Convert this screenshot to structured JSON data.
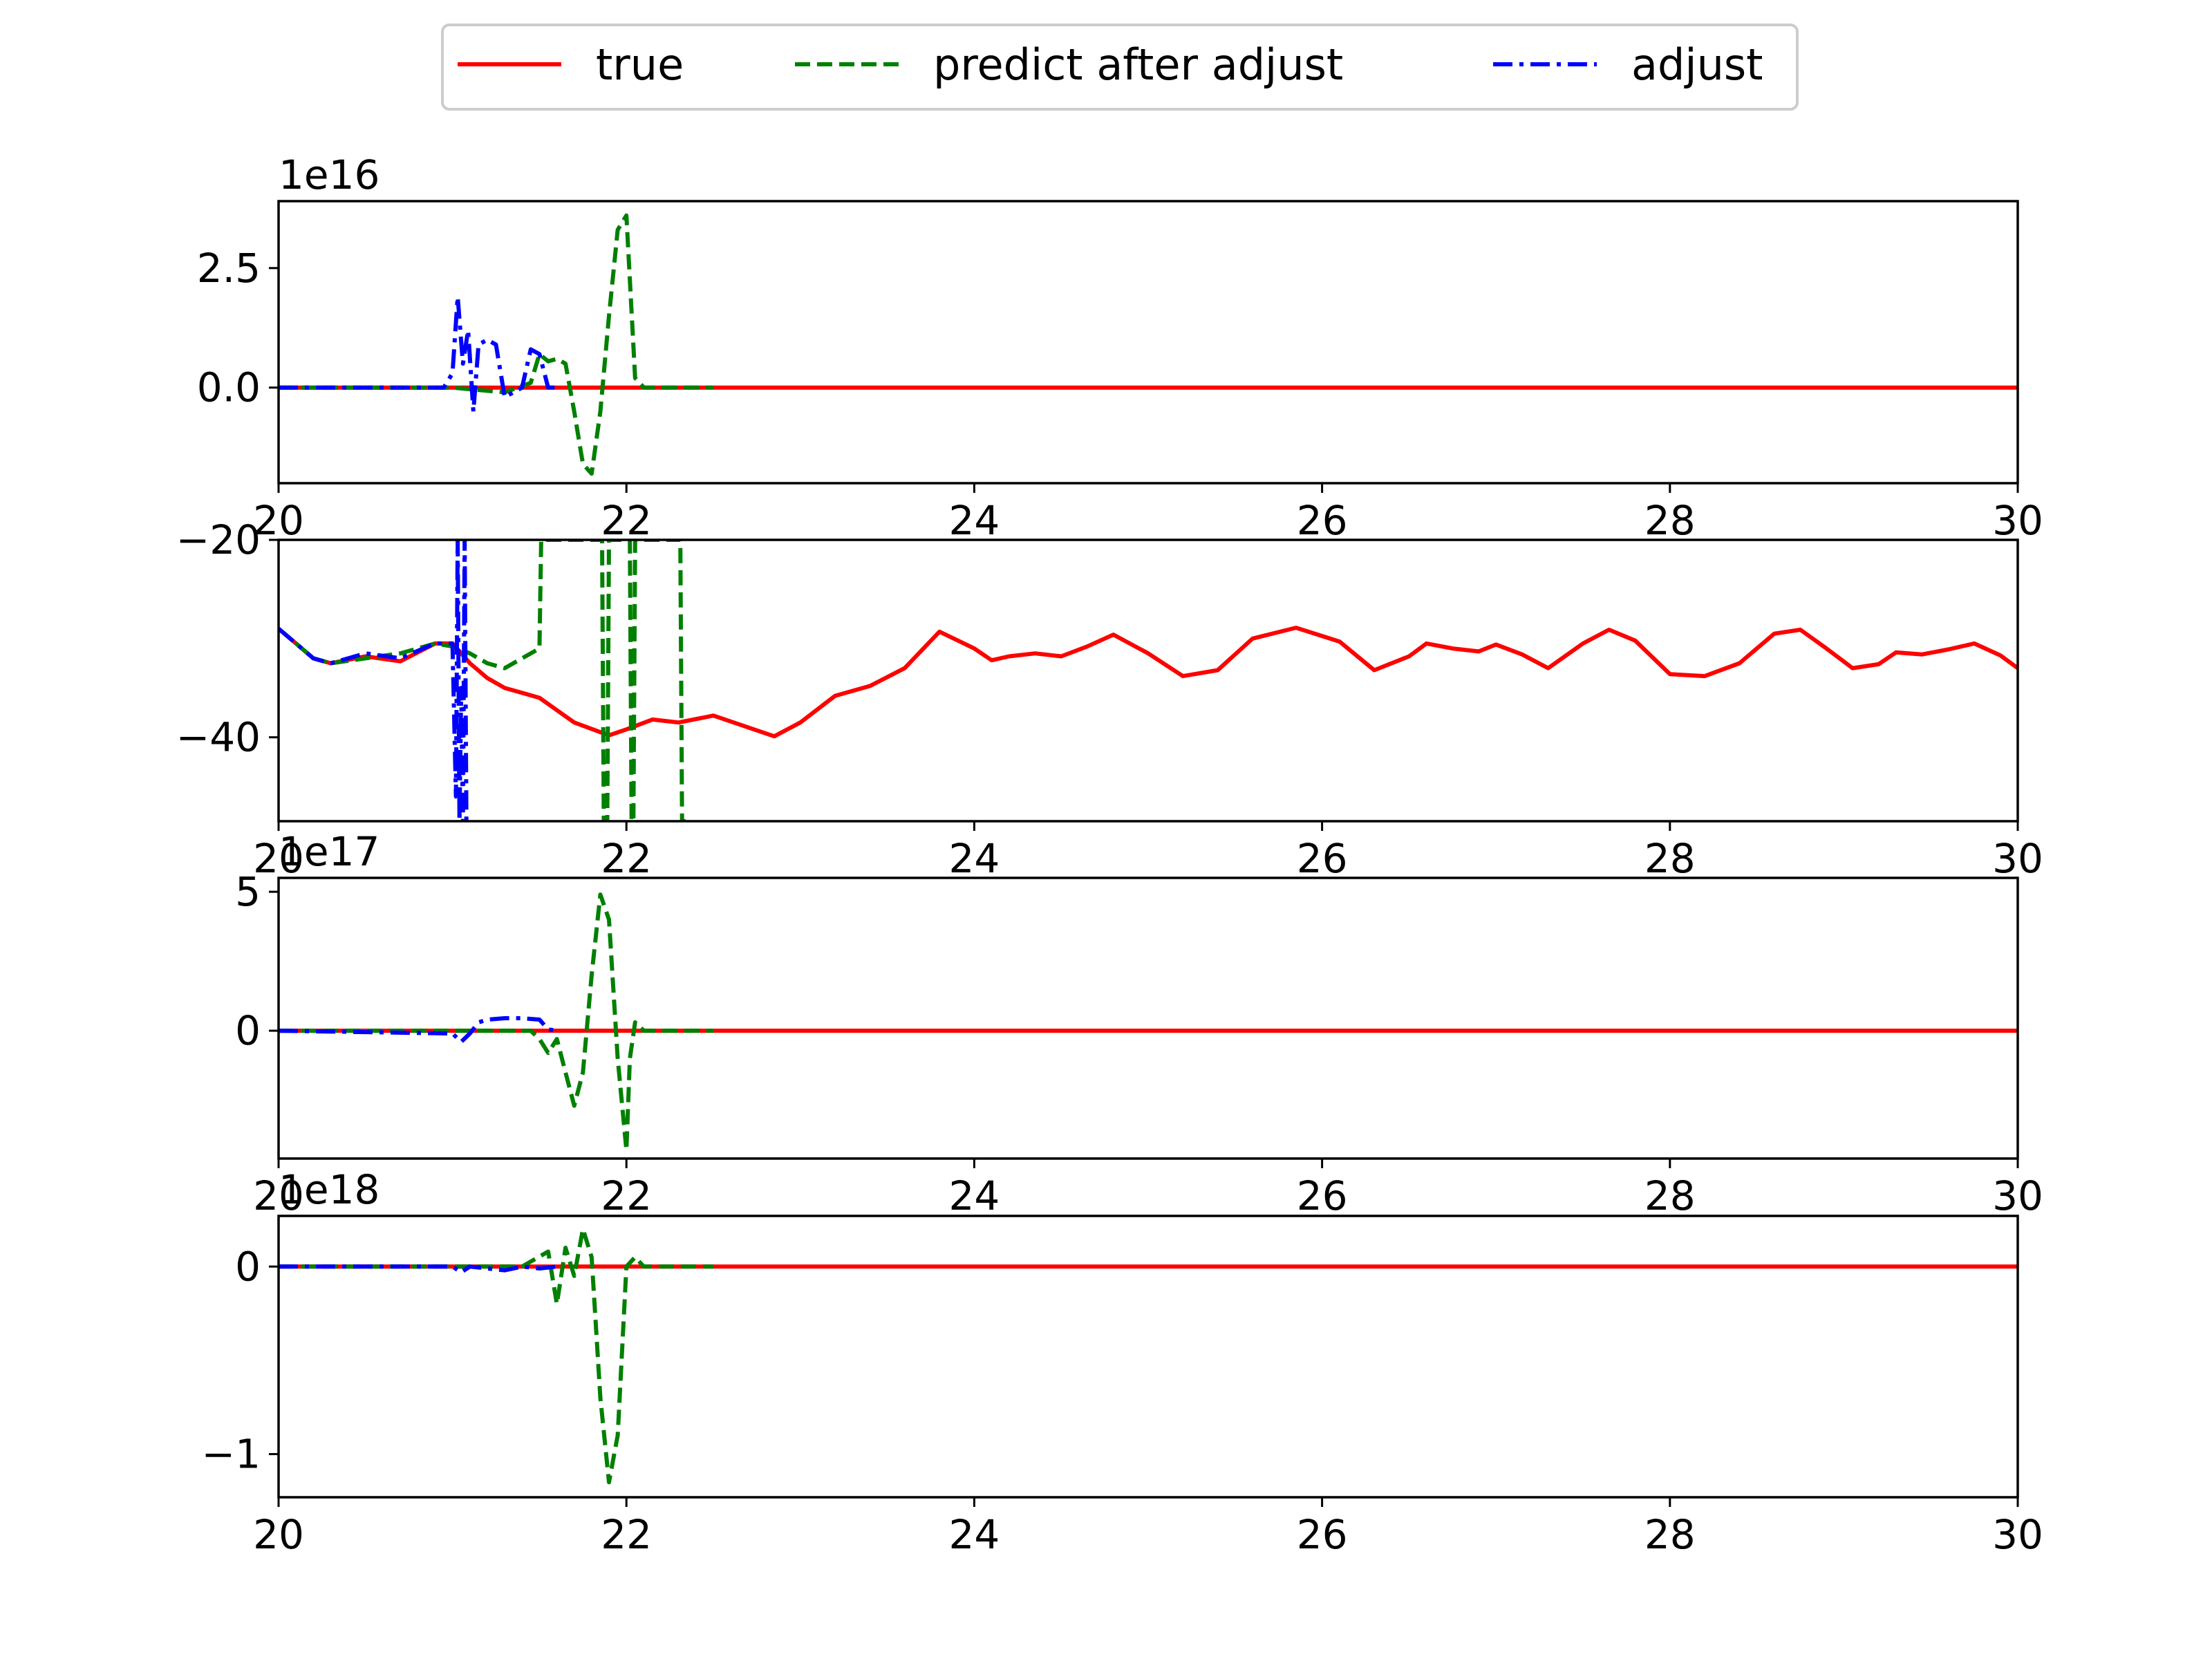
{
  "legend": {
    "placement": "top-center",
    "entries": [
      {
        "label": "true",
        "color": "#ff0000",
        "style": "solid"
      },
      {
        "label": "predict after adjust",
        "color": "#008000",
        "style": "dashed"
      },
      {
        "label": "adjust",
        "color": "#0000ff",
        "style": "dashdot"
      }
    ]
  },
  "chart_data": [
    {
      "type": "line",
      "offset_text": "1e16",
      "xlim": [
        20,
        30
      ],
      "ylim": [
        -2.0,
        3.9
      ],
      "xticks": [
        {
          "v": 20,
          "label": "20"
        },
        {
          "v": 22,
          "label": "22"
        },
        {
          "v": 24,
          "label": "24"
        },
        {
          "v": 26,
          "label": "26"
        },
        {
          "v": 28,
          "label": "28"
        },
        {
          "v": 30,
          "label": "30"
        }
      ],
      "yticks": [
        {
          "v": 0,
          "label": "0.0"
        },
        {
          "v": 2.5,
          "label": "2.5"
        }
      ],
      "series": [
        {
          "name": "true",
          "color": "#ff0000",
          "dash": "solid",
          "x": [
            20,
            22.5,
            30
          ],
          "y": [
            0,
            0,
            0
          ]
        },
        {
          "name": "predict after adjust",
          "color": "#008000",
          "dash": "dashed",
          "x": [
            20,
            21.0,
            21.3,
            21.45,
            21.5,
            21.55,
            21.6,
            21.65,
            21.7,
            21.75,
            21.8,
            21.85,
            21.9,
            21.95,
            22.0,
            22.05,
            22.1,
            22.5
          ],
          "y": [
            0,
            0,
            -0.1,
            0.1,
            0.7,
            0.55,
            0.6,
            0.5,
            -0.5,
            -1.6,
            -1.8,
            -0.5,
            1.5,
            3.3,
            3.6,
            0.2,
            0,
            0
          ]
        },
        {
          "name": "adjust",
          "color": "#0000ff",
          "dash": "dashdot",
          "x": [
            20,
            20.95,
            21.0,
            21.03,
            21.06,
            21.09,
            21.12,
            21.15,
            21.2,
            21.25,
            21.3,
            21.35,
            21.4,
            21.45,
            21.5,
            21.55,
            21.6
          ],
          "y": [
            0,
            0,
            0.3,
            1.9,
            0.5,
            1.2,
            -0.5,
            0.9,
            1.0,
            0.9,
            -0.2,
            -0.1,
            0.0,
            0.8,
            0.7,
            0.0,
            0.0
          ]
        }
      ]
    },
    {
      "type": "line",
      "offset_text": "",
      "xlim": [
        20,
        30
      ],
      "ylim": [
        -48.5,
        -20
      ],
      "xticks": [
        {
          "v": 20,
          "label": "20"
        },
        {
          "v": 22,
          "label": "22"
        },
        {
          "v": 24,
          "label": "24"
        },
        {
          "v": 26,
          "label": "26"
        },
        {
          "v": 28,
          "label": "28"
        },
        {
          "v": 30,
          "label": "30"
        }
      ],
      "yticks": [
        {
          "v": -20,
          "label": "−20"
        },
        {
          "v": -40,
          "label": "−40"
        }
      ],
      "series": [
        {
          "name": "true",
          "color": "#ff0000",
          "dash": "solid",
          "x": [
            20,
            20.1,
            20.2,
            20.3,
            20.5,
            20.7,
            20.9,
            21.0,
            21.1,
            21.2,
            21.3,
            21.5,
            21.7,
            21.9,
            22.0,
            22.15,
            22.3,
            22.5,
            22.7,
            22.85,
            23.0,
            23.2,
            23.4,
            23.6,
            23.8,
            24.0,
            24.1,
            24.2,
            24.35,
            24.5,
            24.65,
            24.8,
            25.0,
            25.2,
            25.4,
            25.6,
            25.85,
            26.1,
            26.3,
            26.5,
            26.6,
            26.75,
            26.9,
            27.0,
            27.15,
            27.3,
            27.5,
            27.65,
            27.8,
            28.0,
            28.2,
            28.4,
            28.6,
            28.75,
            28.9,
            29.05,
            29.2,
            29.3,
            29.45,
            29.6,
            29.75,
            29.9,
            30.0
          ],
          "y": [
            -29,
            -30.5,
            -32,
            -32.5,
            -31.8,
            -32.3,
            -30.5,
            -30.5,
            -32.5,
            -34,
            -35,
            -36,
            -38.5,
            -39.8,
            -39.2,
            -38.2,
            -38.5,
            -37.8,
            -39,
            -39.9,
            -38.5,
            -35.8,
            -34.8,
            -33,
            -29.3,
            -31,
            -32.2,
            -31.8,
            -31.5,
            -31.8,
            -30.8,
            -29.6,
            -31.5,
            -33.8,
            -33.2,
            -30,
            -28.9,
            -30.3,
            -33.2,
            -31.8,
            -30.5,
            -31,
            -31.3,
            -30.6,
            -31.6,
            -33,
            -30.5,
            -29.1,
            -30.2,
            -33.6,
            -33.8,
            -32.5,
            -29.5,
            -29.1,
            -31,
            -33,
            -32.6,
            -31.4,
            -31.6,
            -31.1,
            -30.5,
            -31.7,
            -33
          ]
        },
        {
          "name": "predict after adjust",
          "color": "#008000",
          "dash": "dashed",
          "x": [
            20,
            20.1,
            20.2,
            20.3,
            20.5,
            20.7,
            20.9,
            21.0,
            21.1,
            21.2,
            21.3,
            21.4,
            21.5,
            21.51,
            21.52,
            21.86,
            21.87,
            21.89,
            21.9,
            21.92,
            22.02,
            22.03,
            22.04,
            22.05,
            22.31,
            22.32,
            22.33,
            22.34
          ],
          "y": [
            -29,
            -30.5,
            -32,
            -32.5,
            -32,
            -31.5,
            -30.5,
            -30.8,
            -31.5,
            -32.5,
            -33,
            -32,
            -31,
            -20,
            -20,
            -20,
            -48.5,
            -48.5,
            -20,
            -20,
            -20,
            -48.5,
            -48.5,
            -20,
            -20,
            -48.5,
            -48.5,
            -48.5
          ]
        },
        {
          "name": "adjust",
          "color": "#0000ff",
          "dash": "dashdot",
          "x": [
            20,
            20.1,
            20.2,
            20.3,
            20.5,
            20.7,
            20.9,
            21.0,
            21.02,
            21.03,
            21.04,
            21.05,
            21.06,
            21.07,
            21.08,
            21.09,
            21.1
          ],
          "y": [
            -29,
            -30.5,
            -32,
            -32.5,
            -31.5,
            -32,
            -30.5,
            -30.5,
            -46,
            -20,
            -48.5,
            -35,
            -48.5,
            -20,
            -48.5,
            -48.5,
            -48.5
          ]
        }
      ]
    },
    {
      "type": "line",
      "offset_text": "1e17",
      "xlim": [
        20,
        30
      ],
      "ylim": [
        -4.6,
        5.5
      ],
      "xticks": [
        {
          "v": 20,
          "label": "20"
        },
        {
          "v": 22,
          "label": "22"
        },
        {
          "v": 24,
          "label": "24"
        },
        {
          "v": 26,
          "label": "26"
        },
        {
          "v": 28,
          "label": "28"
        },
        {
          "v": 30,
          "label": "30"
        }
      ],
      "yticks": [
        {
          "v": 0,
          "label": "0"
        },
        {
          "v": 5,
          "label": "5"
        }
      ],
      "series": [
        {
          "name": "true",
          "color": "#ff0000",
          "dash": "solid",
          "x": [
            20,
            22.5,
            30
          ],
          "y": [
            0,
            0,
            0
          ]
        },
        {
          "name": "predict after adjust",
          "color": "#008000",
          "dash": "dashed",
          "x": [
            20,
            21.3,
            21.45,
            21.5,
            21.55,
            21.6,
            21.65,
            21.7,
            21.75,
            21.8,
            21.85,
            21.9,
            21.95,
            22.0,
            22.02,
            22.05,
            22.1,
            22.5
          ],
          "y": [
            0,
            0,
            0,
            -0.3,
            -0.8,
            -0.3,
            -1.5,
            -2.7,
            -1.5,
            2.0,
            4.9,
            4.0,
            -1.0,
            -4.3,
            -1.0,
            0.3,
            0,
            0
          ]
        },
        {
          "name": "adjust",
          "color": "#0000ff",
          "dash": "dashdot",
          "x": [
            20,
            21.0,
            21.05,
            21.1,
            21.15,
            21.2,
            21.3,
            21.4,
            21.5,
            21.55,
            21.6
          ],
          "y": [
            0,
            -0.1,
            -0.4,
            -0.1,
            0.3,
            0.4,
            0.45,
            0.45,
            0.4,
            0.05,
            0.0
          ]
        }
      ]
    },
    {
      "type": "line",
      "offset_text": "1e18",
      "xlim": [
        20,
        30
      ],
      "ylim": [
        -1.23,
        0.27
      ],
      "xticks": [
        {
          "v": 20,
          "label": "20"
        },
        {
          "v": 22,
          "label": "22"
        },
        {
          "v": 24,
          "label": "24"
        },
        {
          "v": 26,
          "label": "26"
        },
        {
          "v": 28,
          "label": "28"
        },
        {
          "v": 30,
          "label": "30"
        }
      ],
      "yticks": [
        {
          "v": 0,
          "label": "0"
        },
        {
          "v": -1,
          "label": "−1"
        }
      ],
      "series": [
        {
          "name": "true",
          "color": "#ff0000",
          "dash": "solid",
          "x": [
            20,
            22.5,
            30
          ],
          "y": [
            0,
            0,
            0
          ]
        },
        {
          "name": "predict after adjust",
          "color": "#008000",
          "dash": "dashed",
          "x": [
            20,
            21.4,
            21.55,
            21.6,
            21.65,
            21.7,
            21.75,
            21.8,
            21.85,
            21.9,
            21.95,
            22.0,
            22.05,
            22.1,
            22.5
          ],
          "y": [
            0,
            0,
            0.08,
            -0.2,
            0.1,
            -0.05,
            0.2,
            0.05,
            -0.7,
            -1.15,
            -0.9,
            0.0,
            0.05,
            0,
            0
          ]
        },
        {
          "name": "adjust",
          "color": "#0000ff",
          "dash": "dashdot",
          "x": [
            20,
            21.0,
            21.05,
            21.1,
            21.2,
            21.3,
            21.4,
            21.5,
            21.6
          ],
          "y": [
            0,
            0,
            -0.03,
            0.0,
            -0.01,
            -0.02,
            0.0,
            -0.01,
            0.0
          ]
        }
      ]
    }
  ]
}
